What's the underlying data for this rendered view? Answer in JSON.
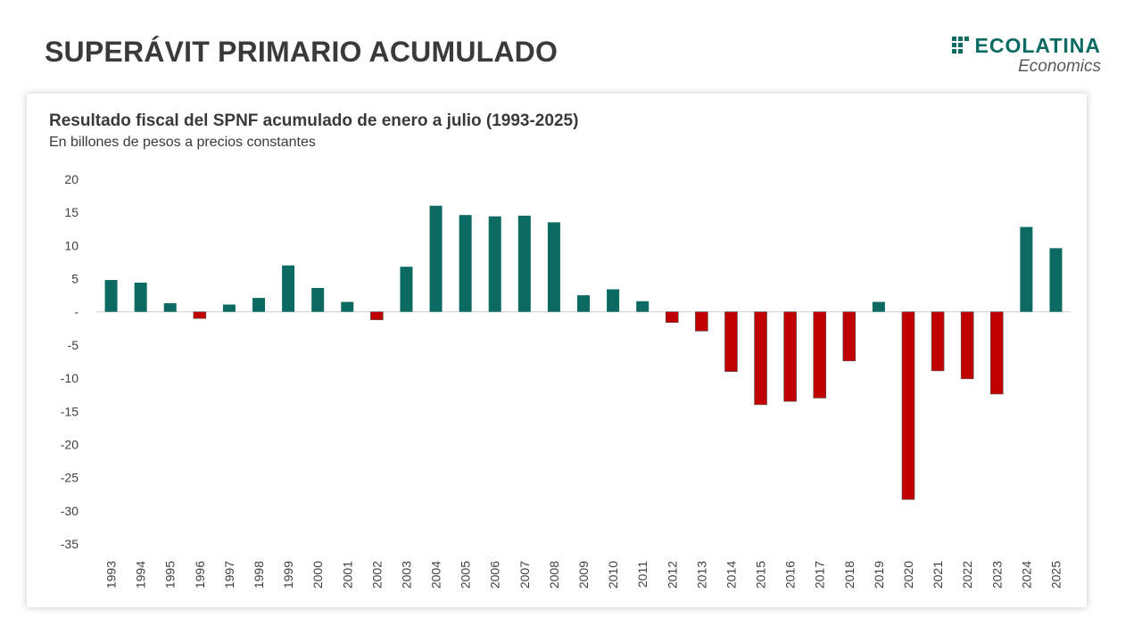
{
  "header": {
    "title": "SUPERÁVIT PRIMARIO ACUMULADO"
  },
  "logo": {
    "name": "ECOLATINA",
    "sub": "Economics",
    "color": "#0b6b62"
  },
  "chart_data": {
    "type": "bar",
    "title": "Resultado fiscal del SPNF acumulado de enero a julio (1993-2025)",
    "subtitle": "En billones de pesos a precios constantes",
    "xlabel": "",
    "ylabel": "",
    "ylim": [
      -35,
      20
    ],
    "yticks": [
      20,
      15,
      10,
      5,
      0,
      -5,
      -10,
      -15,
      -20,
      -25,
      -30,
      -35
    ],
    "ytick_labels": [
      "20",
      "15",
      "10",
      "5",
      "-",
      "-5",
      "-10",
      "-15",
      "-20",
      "-25",
      "-30",
      "-35"
    ],
    "categories": [
      "1993",
      "1994",
      "1995",
      "1996",
      "1997",
      "1998",
      "1999",
      "2000",
      "2001",
      "2002",
      "2003",
      "2004",
      "2005",
      "2006",
      "2007",
      "2008",
      "2009",
      "2010",
      "2011",
      "2012",
      "2013",
      "2014",
      "2015",
      "2016",
      "2017",
      "2018",
      "2019",
      "2020",
      "2021",
      "2022",
      "2023",
      "2024",
      "2025"
    ],
    "values": [
      4.8,
      4.4,
      1.3,
      -1.0,
      1.1,
      2.1,
      7.0,
      3.6,
      1.5,
      -1.2,
      6.8,
      16.0,
      14.6,
      14.4,
      14.5,
      13.5,
      2.5,
      3.4,
      1.6,
      -1.6,
      -2.9,
      -9.0,
      -14.0,
      -13.5,
      -13.0,
      -7.4,
      1.5,
      -28.3,
      -8.9,
      -10.1,
      -12.4,
      12.8,
      9.6
    ],
    "colors": {
      "positive": "#0b6b62",
      "negative": "#c00000",
      "zero_line": "#d0d0d0"
    },
    "grid": false,
    "legend": "none"
  }
}
